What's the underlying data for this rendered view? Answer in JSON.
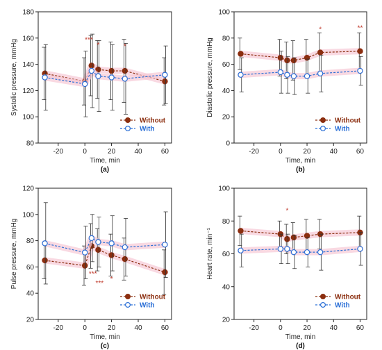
{
  "figure": {
    "colors": {
      "without": "#8b2e0f",
      "with": "#2b6fd6",
      "band": "#f6c9d6",
      "errorbar": "#333333",
      "star": "#c0392b"
    }
  },
  "chart_data": [
    {
      "panel": "(a)",
      "type": "line",
      "xlabel": "Time, min",
      "ylabel": "Systolic pressure, mmHg",
      "xlim": [
        -35,
        65
      ],
      "ylim": [
        80,
        180
      ],
      "xticks": [
        -20,
        0,
        20,
        40,
        60
      ],
      "yticks": [
        80,
        100,
        120,
        140,
        160,
        180
      ],
      "legend_position": "bottom-right",
      "series": [
        {
          "name": "Without",
          "x": [
            -30,
            0,
            5,
            10,
            20,
            30,
            60
          ],
          "y": [
            133,
            127,
            139,
            136,
            135,
            135,
            127
          ],
          "err": [
            20,
            18,
            23,
            22,
            22,
            24,
            18
          ]
        },
        {
          "name": "With",
          "x": [
            -30,
            0,
            5,
            10,
            20,
            30,
            60
          ],
          "y": [
            130,
            125,
            135,
            131,
            130,
            129,
            132
          ],
          "err": [
            25,
            25,
            28,
            27,
            25,
            27,
            22
          ]
        }
      ],
      "annotations": [
        {
          "x": 3,
          "y": 157,
          "text": "***"
        },
        {
          "x": 10,
          "y": 153,
          "text": "*"
        },
        {
          "x": 30,
          "y": 152,
          "text": "*"
        }
      ]
    },
    {
      "panel": "(b)",
      "type": "line",
      "xlabel": "Time, min",
      "ylabel": "Diastolic pressure, mmHg",
      "xlim": [
        -35,
        65
      ],
      "ylim": [
        0,
        100
      ],
      "xticks": [
        -20,
        0,
        20,
        40,
        60
      ],
      "yticks": [
        0,
        20,
        40,
        60,
        80,
        100
      ],
      "legend_position": "bottom-right",
      "series": [
        {
          "name": "Without",
          "x": [
            -30,
            0,
            5,
            10,
            20,
            30,
            60
          ],
          "y": [
            68,
            65,
            63,
            63,
            65,
            69,
            70
          ],
          "err": [
            12,
            14,
            14,
            15,
            14,
            15,
            14
          ]
        },
        {
          "name": "With",
          "x": [
            -30,
            0,
            5,
            10,
            20,
            30,
            60
          ],
          "y": [
            52,
            54,
            52,
            51,
            51,
            53,
            55
          ],
          "err": [
            13,
            16,
            14,
            14,
            13,
            14,
            11
          ]
        }
      ],
      "annotations": [
        {
          "x": 30,
          "y": 85,
          "text": "*"
        },
        {
          "x": 60,
          "y": 86,
          "text": "**"
        }
      ]
    },
    {
      "panel": "(c)",
      "type": "line",
      "xlabel": "Time, min",
      "ylabel": "Pulse pressure, mmHg",
      "xlim": [
        -35,
        65
      ],
      "ylim": [
        20,
        120
      ],
      "xticks": [
        -20,
        0,
        20,
        40,
        60
      ],
      "yticks": [
        20,
        40,
        60,
        80,
        100,
        120
      ],
      "legend_position": "bottom-right",
      "series": [
        {
          "name": "Without",
          "x": [
            -30,
            0,
            5,
            10,
            20,
            30,
            60
          ],
          "y": [
            65,
            61,
            76,
            73,
            69,
            66,
            56
          ],
          "err": [
            14,
            15,
            17,
            16,
            16,
            16,
            17
          ]
        },
        {
          "name": "With",
          "x": [
            -30,
            0,
            5,
            10,
            20,
            30,
            60
          ],
          "y": [
            78,
            71,
            82,
            79,
            78,
            75,
            77
          ],
          "err": [
            31,
            20,
            18,
            19,
            21,
            22,
            25
          ]
        }
      ],
      "annotations": [
        {
          "x": 6,
          "y": 53,
          "text": "***"
        },
        {
          "x": 11,
          "y": 46,
          "text": "***"
        },
        {
          "x": 20,
          "y": 49,
          "text": "*"
        }
      ]
    },
    {
      "panel": "(d)",
      "type": "line",
      "xlabel": "Time, min",
      "ylabel": "Heart rate, min⁻¹",
      "xlim": [
        -35,
        65
      ],
      "ylim": [
        20,
        100
      ],
      "xticks": [
        -20,
        0,
        20,
        40,
        60
      ],
      "yticks": [
        20,
        40,
        60,
        80,
        100
      ],
      "legend_position": "bottom-right",
      "series": [
        {
          "name": "Without",
          "x": [
            -30,
            0,
            5,
            10,
            20,
            30,
            60
          ],
          "y": [
            74,
            72,
            69,
            70,
            71,
            72,
            73
          ],
          "err": [
            9,
            8,
            9,
            9,
            10,
            9,
            10
          ]
        },
        {
          "name": "With",
          "x": [
            -30,
            0,
            5,
            10,
            20,
            30,
            60
          ],
          "y": [
            62,
            63,
            63,
            61,
            61,
            61,
            63
          ],
          "err": [
            10,
            9,
            9,
            10,
            9,
            11,
            10
          ]
        }
      ],
      "annotations": [
        {
          "x": 5,
          "y": 85,
          "text": "*"
        }
      ]
    }
  ]
}
